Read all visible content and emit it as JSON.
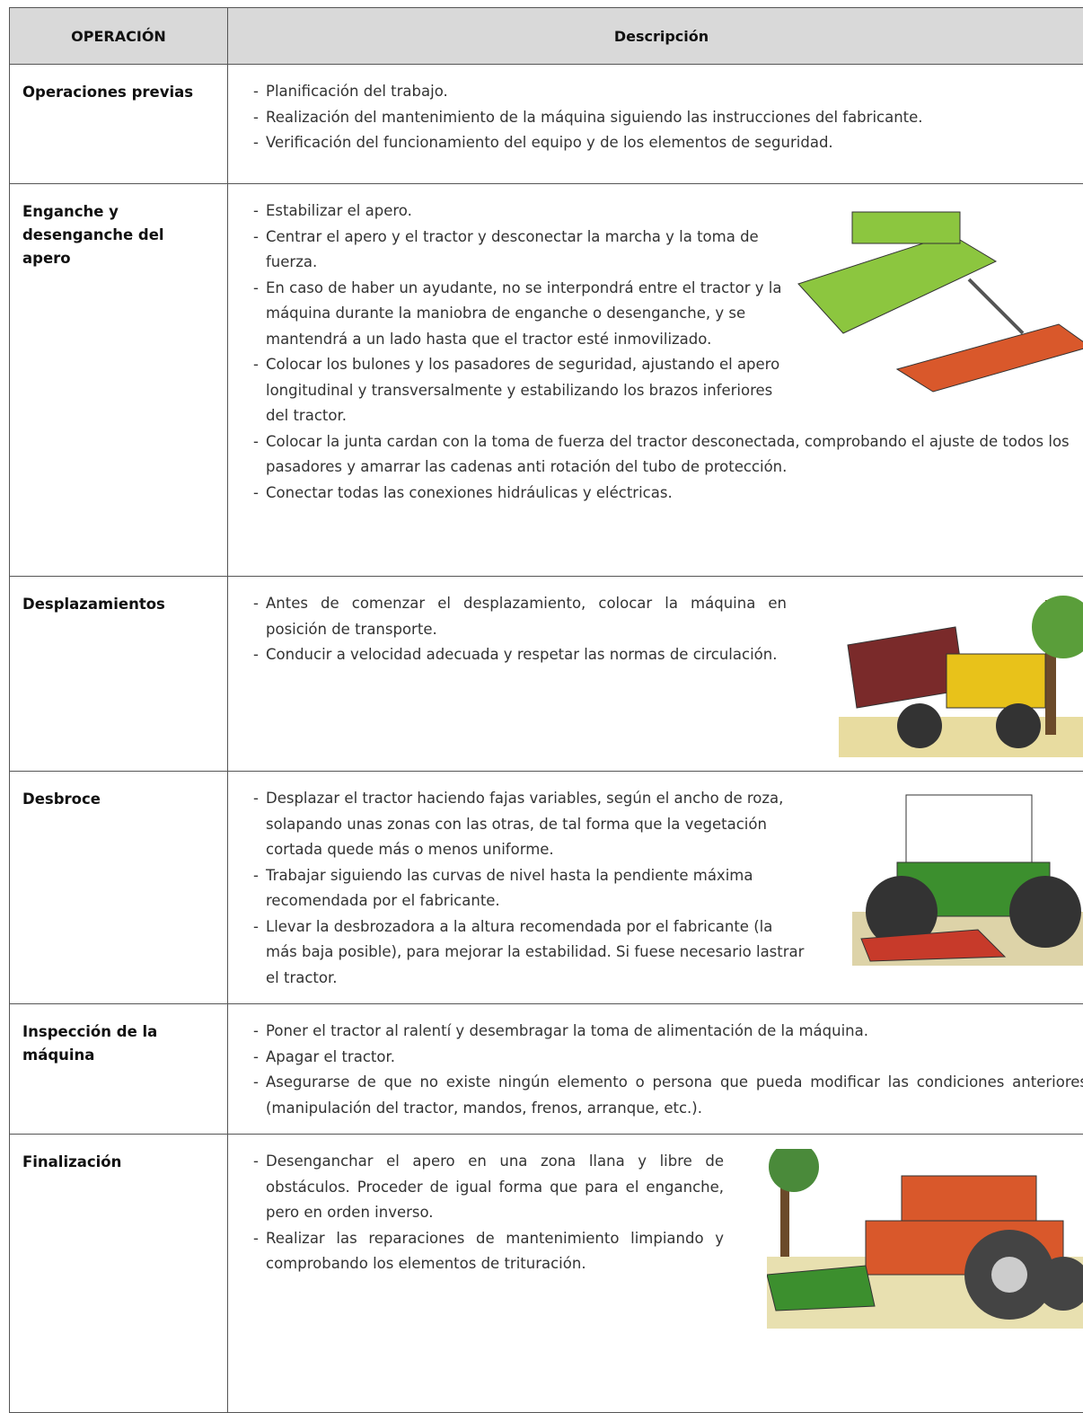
{
  "table": {
    "header": [
      "OPERACIÓN",
      "Descripción"
    ],
    "rows": [
      {
        "operation": "Operaciones previas",
        "items": [
          "Planificación del trabajo.",
          "Realización del mantenimiento de la máquina siguiendo las instrucciones del fabricante.",
          "Verificación del funcionamiento del equipo y de los elementos de seguridad."
        ]
      },
      {
        "operation": "Enganche y desenganche del apero",
        "items": [
          "Estabilizar el apero.",
          "Centrar el apero y el tractor y desconectar la marcha y la toma de fuerza.",
          "En caso de haber un ayudante, no se interpondrá entre el tractor y la máquina durante la maniobra de enganche o desenganche, y se mantendrá a un lado hasta que el tractor esté inmovilizado.",
          "Colocar los bulones y los pasadores de seguridad, ajustando el apero longitudinal y transversalmente y estabilizando los brazos inferiores del tractor.",
          "Colocar la junta cardan con la toma de fuerza del tractor desconectada, comprobando el ajuste de todos los pasadores y amarrar las cadenas anti rotación del tubo de protección.",
          "Conectar todas las conexiones hidráulicas y eléctricas."
        ]
      },
      {
        "operation": "Desplazamientos",
        "items": [
          "Antes de comenzar el desplazamiento, colocar la máquina en posición de transporte.",
          "Conducir a velocidad adecuada y respetar las normas de circulación."
        ]
      },
      {
        "operation": "Desbroce",
        "items": [
          "Desplazar el tractor haciendo fajas variables, según el ancho de roza, solapando unas zonas con las otras, de tal forma que la vegetación cortada quede más o menos uniforme.",
          "Trabajar siguiendo las curvas de nivel hasta la pendiente máxima recomendada por el fabricante.",
          "Llevar la desbrozadora a la altura recomendada por el fabricante (la más baja posible), para mejorar la estabilidad. Si fuese necesario lastrar el tractor."
        ]
      },
      {
        "operation": "Inspección de la máquina",
        "items": [
          "Poner el tractor al ralentí y desembragar la toma de alimentación de la máquina.",
          "Apagar el tractor.",
          "Asegurarse de que no existe ningún elemento o persona que pueda modificar las condiciones anteriores (manipulación del tractor, mandos, frenos, arranque, etc.)."
        ]
      },
      {
        "operation": "Finalización",
        "items": [
          "Desenganchar el apero en una zona llana y libre de obstáculos. Proceder de igual forma que para el enganche, pero en orden inverso.",
          "Realizar las reparaciones de mantenimiento limpiando y comprobando los elementos de trituración."
        ]
      }
    ]
  }
}
